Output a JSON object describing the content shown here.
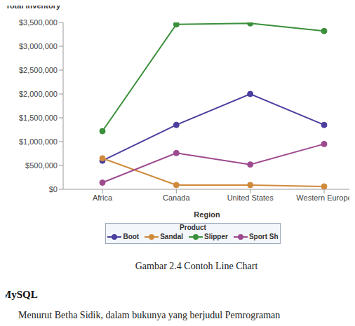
{
  "chart_data": {
    "type": "line",
    "y_label": "Total Inventory",
    "x_label": "Region",
    "legend_title": "Product",
    "categories": [
      "Africa",
      "Canada",
      "United States",
      "Western Europe"
    ],
    "series": [
      {
        "name": "Boot",
        "color": "#4a3f9e",
        "values": [
          600000,
          1350000,
          2000000,
          1350000
        ]
      },
      {
        "name": "Sandal",
        "color": "#d08a3c",
        "values": [
          650000,
          90000,
          90000,
          60000
        ]
      },
      {
        "name": "Slipper",
        "color": "#3a8f3a",
        "values": [
          1220000,
          3460000,
          3480000,
          3320000
        ]
      },
      {
        "name": "Sport Sh",
        "color": "#9e4a8e",
        "values": [
          140000,
          760000,
          520000,
          950000
        ]
      }
    ],
    "ylim": [
      0,
      3500000
    ],
    "yticks": [
      {
        "value": 0,
        "label": "$0"
      },
      {
        "value": 500000,
        "label": "$500,000"
      },
      {
        "value": 1000000,
        "label": "$1,000,000"
      },
      {
        "value": 1500000,
        "label": "$1,500,000"
      },
      {
        "value": 2000000,
        "label": "$2,000,000"
      },
      {
        "value": 2500000,
        "label": "$2,500,000"
      },
      {
        "value": 3000000,
        "label": "$3,000,000"
      },
      {
        "value": 3500000,
        "label": "$3,500,000"
      }
    ],
    "grid": false,
    "marker": "circle"
  },
  "caption": "Gambar 2.4 Contoh Line Chart",
  "heading": "MySQL",
  "paragraph": "Menurut Betha Sidik, dalam bukunya yang berjudul Pemrograman"
}
